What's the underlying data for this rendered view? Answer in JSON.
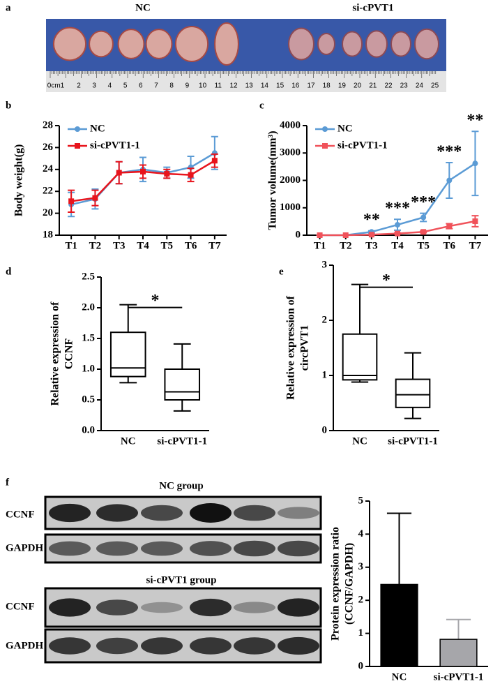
{
  "panel_labels": [
    "a",
    "b",
    "c",
    "d",
    "e",
    "f"
  ],
  "photo": {
    "groups": [
      "NC",
      "si-cPVT1"
    ],
    "ruler": [
      "0cm1",
      "2",
      "3",
      "4",
      "5",
      "6",
      "7",
      "8",
      "9",
      "10",
      "11",
      "12",
      "13",
      "14",
      "15",
      "16",
      "17",
      "18",
      "19",
      "20",
      "21",
      "22",
      "23",
      "24",
      "25"
    ]
  },
  "blots": {
    "groups": [
      "NC group",
      "si-cPVT1 group"
    ],
    "rows": [
      "CCNF",
      "GAPDH",
      "CCNF",
      "GAPDH"
    ]
  },
  "chart_data": [
    {
      "type": "line",
      "ylabel": [
        "Body weight(g)"
      ],
      "categories": [
        "T1",
        "T2",
        "T3",
        "T4",
        "T5",
        "T6",
        "T7"
      ],
      "ylim": [
        18,
        28
      ],
      "yticks": [
        18,
        20,
        22,
        24,
        26,
        28
      ],
      "series": [
        {
          "name": "NC",
          "color": "#5b9bd5",
          "marker": "circle",
          "values": [
            20.8,
            21.3,
            23.7,
            24.0,
            23.7,
            24.2,
            25.5
          ],
          "errors": [
            1.1,
            0.9,
            1.0,
            1.1,
            0.5,
            1.0,
            1.5
          ]
        },
        {
          "name": "si-cPVT1-1",
          "color": "#e8141c",
          "marker": "square",
          "values": [
            21.1,
            21.4,
            23.7,
            23.8,
            23.6,
            23.5,
            24.8
          ],
          "errors": [
            1.0,
            0.7,
            1.0,
            0.6,
            0.4,
            0.6,
            0.6
          ]
        }
      ]
    },
    {
      "type": "line",
      "ylabel": [
        "Tumor volume(mm³)"
      ],
      "categories": [
        "T1",
        "T2",
        "T3",
        "T4",
        "T5",
        "T6",
        "T7"
      ],
      "ylim": [
        0,
        4000
      ],
      "yticks": [
        0,
        1000,
        2000,
        3000,
        4000
      ],
      "series": [
        {
          "name": "NC",
          "color": "#5b9bd5",
          "marker": "circle",
          "values": [
            0,
            0,
            120,
            380,
            650,
            2000,
            2620
          ],
          "errors": [
            0,
            0,
            40,
            200,
            150,
            650,
            1170
          ]
        },
        {
          "name": "si-cPVT1-1",
          "color": "#f0525a",
          "marker": "square",
          "values": [
            0,
            0,
            20,
            60,
            120,
            330,
            510
          ],
          "errors": [
            0,
            0,
            10,
            20,
            30,
            90,
            200
          ]
        }
      ],
      "annotations": [
        {
          "x": "T3",
          "text": "**"
        },
        {
          "x": "T4",
          "text": "***"
        },
        {
          "x": "T5",
          "text": "***"
        },
        {
          "x": "T6",
          "text": "***"
        },
        {
          "x": "T7",
          "text": "**"
        }
      ]
    },
    {
      "type": "box",
      "ylabel": [
        "Relative expression of",
        "CCNF"
      ],
      "categories": [
        "NC",
        "si-cPVT1-1"
      ],
      "ylim": [
        0,
        2.5
      ],
      "yticks": [
        {
          "value": 0,
          "label": "0.0"
        },
        0.5,
        {
          "value": 1,
          "label": "1.0"
        },
        1.5,
        {
          "value": 2,
          "label": "2.0"
        },
        2.5
      ],
      "boxes": [
        {
          "min": 0.78,
          "q1": 0.88,
          "median": 1.02,
          "q3": 1.6,
          "max": 2.05
        },
        {
          "min": 0.32,
          "q1": 0.5,
          "median": 0.63,
          "q3": 1.0,
          "max": 1.41
        }
      ],
      "significance": "*"
    },
    {
      "type": "box",
      "ylabel": [
        "Relative expression of",
        "circPVT1"
      ],
      "categories": [
        "NC",
        "si-cPVT1-1"
      ],
      "ylim": [
        0,
        3
      ],
      "yticks": [
        0,
        1,
        2,
        3
      ],
      "boxes": [
        {
          "min": 0.88,
          "q1": 0.92,
          "median": 1.0,
          "q3": 1.75,
          "max": 2.65
        },
        {
          "min": 0.22,
          "q1": 0.42,
          "median": 0.65,
          "q3": 0.93,
          "max": 1.41
        }
      ],
      "significance": "*"
    },
    {
      "type": "bar",
      "ylabel": [
        "Protein expression ratio",
        "(CCNF/GAPDH)"
      ],
      "categories": [
        "NC",
        "si-cPVT1-1"
      ],
      "ylim": [
        0,
        5
      ],
      "yticks": [
        0,
        1,
        2,
        3,
        4,
        5
      ],
      "values": [
        2.48,
        0.82
      ],
      "errors": [
        2.15,
        0.6
      ],
      "colors": [
        "#000000",
        "#a6a6aa"
      ]
    }
  ]
}
